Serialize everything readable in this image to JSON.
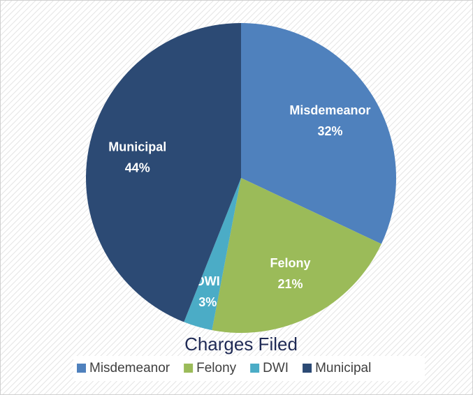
{
  "chart_data": {
    "type": "pie",
    "title": "Charges Filed",
    "categories": [
      "Misdemeanor",
      "Felony",
      "DWI",
      "Municipal"
    ],
    "values": [
      32,
      21,
      3,
      44
    ],
    "value_labels": [
      "32%",
      "21%",
      "3%",
      "44%"
    ],
    "colors": [
      "#4f81bd",
      "#9bbb59",
      "#4bacc6",
      "#2c4a74"
    ],
    "legend": "bottom"
  }
}
